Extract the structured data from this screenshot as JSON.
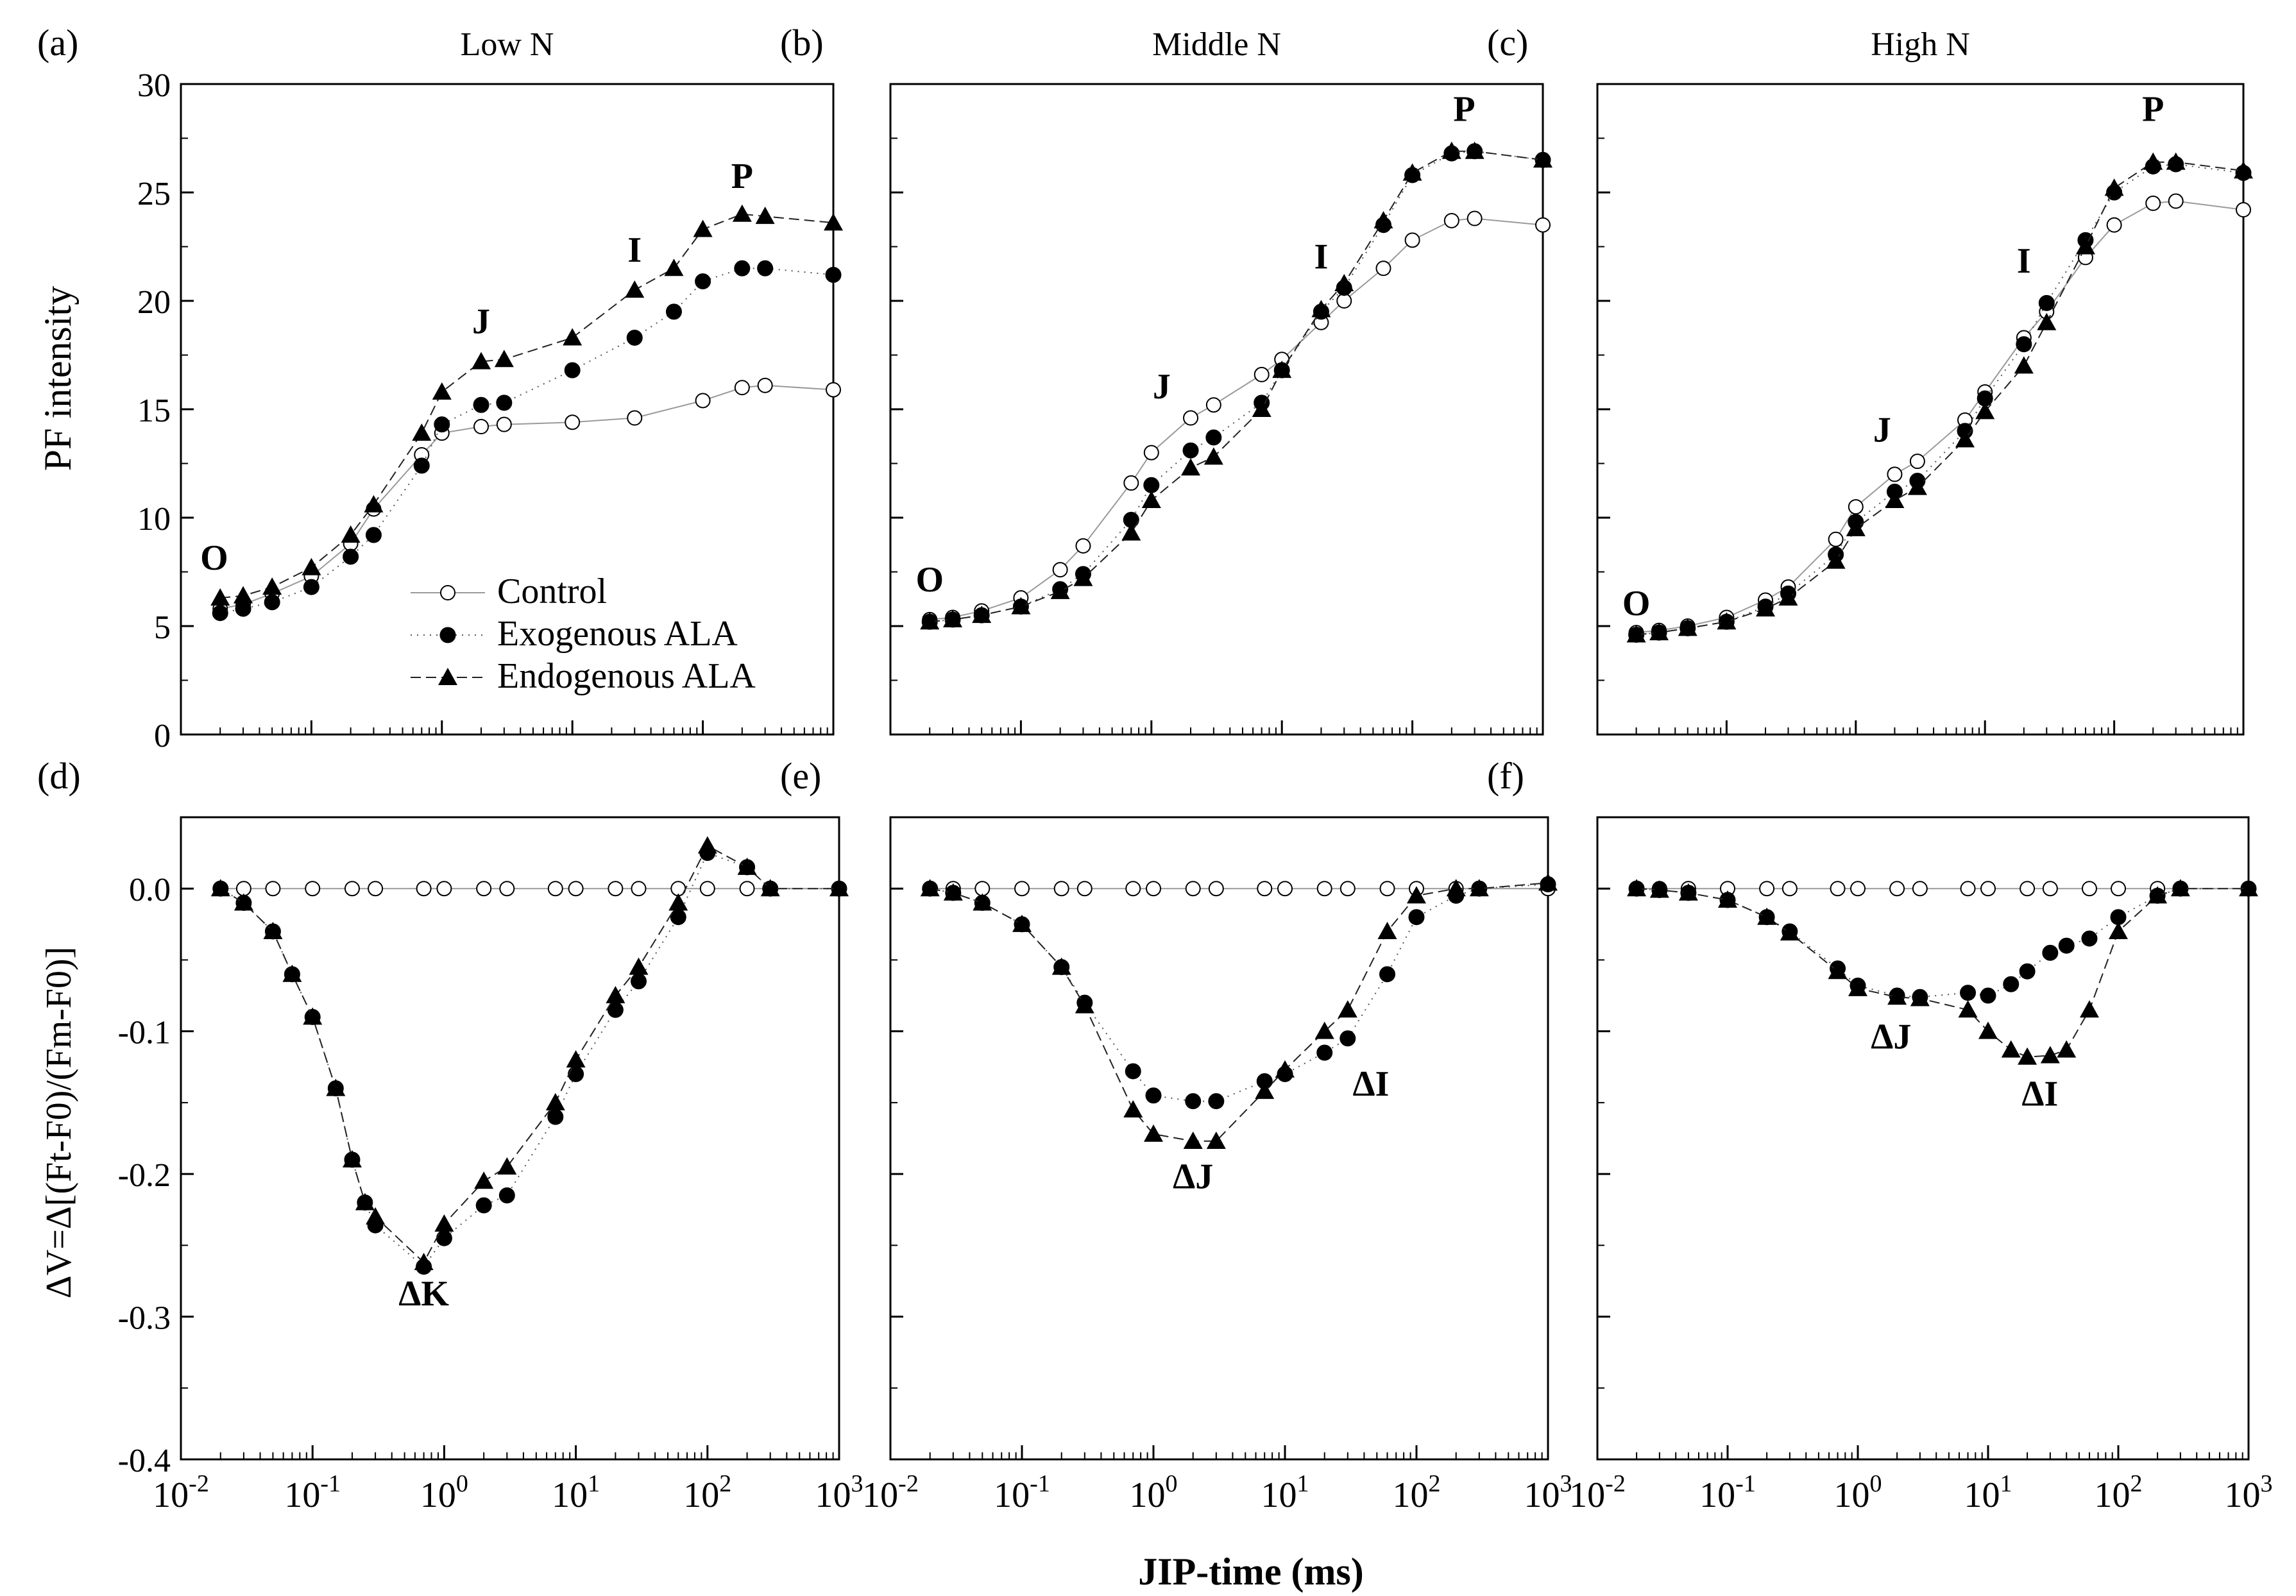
{
  "figure": {
    "xlabel": "JIP-time (ms)",
    "ylabel_top": "PF intensity",
    "ylabel_bottom": "ΔV=Δ[(Ft-F0)/(Fm-F0)]"
  },
  "legend": {
    "entries": [
      {
        "series": "Control",
        "marker": "open-circle"
      },
      {
        "series": "Exogenous ALA",
        "marker": "filled-circle"
      },
      {
        "series": "Endogenous ALA",
        "marker": "filled-triangle"
      }
    ],
    "placement": "panel (a), bottom-center"
  },
  "chart_data": [
    {
      "panel": "(a)",
      "title": "Low N",
      "type": "scatter",
      "xscale": "log",
      "xlim": [
        0.01,
        1000
      ],
      "ylim": [
        0,
        30
      ],
      "yticks": [
        0,
        5,
        10,
        15,
        20,
        25,
        30
      ],
      "xticks": [
        "10-2",
        "10-1",
        "100",
        "101",
        "102",
        "103"
      ],
      "annotations": [
        {
          "text": "O",
          "x": 0.018,
          "y": 7.6
        },
        {
          "text": "J",
          "x": 2.0,
          "y": 18.5
        },
        {
          "text": "I",
          "x": 30,
          "y": 21.8
        },
        {
          "text": "P",
          "x": 200,
          "y": 25.2
        }
      ],
      "series": [
        {
          "name": "Control",
          "x": [
            0.02,
            0.03,
            0.05,
            0.1,
            0.2,
            0.3,
            0.7,
            1,
            2,
            3,
            10,
            30,
            100,
            200,
            300,
            1000
          ],
          "y": [
            5.8,
            6.0,
            6.5,
            7.3,
            8.8,
            10.4,
            12.9,
            13.9,
            14.2,
            14.3,
            14.4,
            14.6,
            15.4,
            16.0,
            16.1,
            15.9
          ]
        },
        {
          "name": "Exogenous ALA",
          "x": [
            0.02,
            0.03,
            0.05,
            0.1,
            0.2,
            0.3,
            0.7,
            1,
            2,
            3,
            10,
            30,
            60,
            100,
            200,
            300,
            1000
          ],
          "y": [
            5.6,
            5.8,
            6.1,
            6.8,
            8.2,
            9.2,
            12.4,
            14.3,
            15.2,
            15.3,
            16.8,
            18.3,
            19.5,
            20.9,
            21.5,
            21.5,
            21.2
          ]
        },
        {
          "name": "Endogenous ALA",
          "x": [
            0.02,
            0.03,
            0.05,
            0.1,
            0.2,
            0.3,
            0.7,
            1,
            2,
            3,
            10,
            30,
            60,
            100,
            200,
            300,
            1000
          ],
          "y": [
            6.3,
            6.4,
            6.8,
            7.7,
            9.2,
            10.6,
            13.9,
            15.8,
            17.2,
            17.3,
            18.3,
            20.5,
            21.5,
            23.3,
            24.0,
            23.9,
            23.6
          ]
        }
      ]
    },
    {
      "panel": "(b)",
      "title": "Middle N",
      "type": "scatter",
      "xscale": "log",
      "xlim": [
        0.01,
        1000
      ],
      "ylim": [
        0,
        30
      ],
      "annotations": [
        {
          "text": "O",
          "x": 0.02,
          "y": 6.6
        },
        {
          "text": "J",
          "x": 1.2,
          "y": 15.5
        },
        {
          "text": "I",
          "x": 20,
          "y": 21.5
        },
        {
          "text": "P",
          "x": 250,
          "y": 28.3
        }
      ],
      "series": [
        {
          "name": "Control",
          "x": [
            0.02,
            0.03,
            0.05,
            0.1,
            0.2,
            0.3,
            0.7,
            1,
            2,
            3,
            7,
            10,
            20,
            30,
            60,
            100,
            200,
            300,
            1000
          ],
          "y": [
            5.3,
            5.4,
            5.7,
            6.3,
            7.6,
            8.7,
            11.6,
            13.0,
            14.6,
            15.2,
            16.6,
            17.3,
            19.0,
            20.0,
            21.5,
            22.8,
            23.7,
            23.8,
            23.5
          ]
        },
        {
          "name": "Exogenous ALA",
          "x": [
            0.02,
            0.03,
            0.05,
            0.1,
            0.2,
            0.3,
            0.7,
            1,
            2,
            3,
            7,
            10,
            20,
            30,
            60,
            100,
            200,
            300,
            1000
          ],
          "y": [
            5.2,
            5.3,
            5.5,
            5.9,
            6.7,
            7.4,
            9.9,
            11.5,
            13.1,
            13.7,
            15.3,
            16.8,
            19.5,
            20.6,
            23.5,
            25.8,
            26.8,
            26.9,
            26.5
          ]
        },
        {
          "name": "Endogenous ALA",
          "x": [
            0.02,
            0.03,
            0.05,
            0.1,
            0.2,
            0.3,
            0.7,
            1,
            2,
            3,
            7,
            10,
            20,
            30,
            60,
            100,
            200,
            300,
            1000
          ],
          "y": [
            5.2,
            5.3,
            5.5,
            5.9,
            6.6,
            7.2,
            9.3,
            10.8,
            12.3,
            12.8,
            15.0,
            16.8,
            19.6,
            20.8,
            23.7,
            25.9,
            26.9,
            26.9,
            26.5
          ]
        }
      ]
    },
    {
      "panel": "(c)",
      "title": "High N",
      "type": "scatter",
      "xscale": "log",
      "xlim": [
        0.01,
        1000
      ],
      "ylim": [
        0,
        30
      ],
      "annotations": [
        {
          "text": "O",
          "x": 0.02,
          "y": 5.5
        },
        {
          "text": "J",
          "x": 1.6,
          "y": 13.5
        },
        {
          "text": "I",
          "x": 20,
          "y": 21.3
        },
        {
          "text": "P",
          "x": 200,
          "y": 28.3
        }
      ],
      "series": [
        {
          "name": "Control",
          "x": [
            0.02,
            0.03,
            0.05,
            0.1,
            0.2,
            0.3,
            0.7,
            1,
            2,
            3,
            7,
            10,
            20,
            30,
            60,
            100,
            200,
            300,
            1000
          ],
          "y": [
            4.7,
            4.8,
            5.0,
            5.4,
            6.2,
            6.8,
            9.0,
            10.5,
            12.0,
            12.6,
            14.5,
            15.8,
            18.3,
            19.5,
            22.0,
            23.5,
            24.5,
            24.6,
            24.2
          ]
        },
        {
          "name": "Exogenous ALA",
          "x": [
            0.02,
            0.03,
            0.05,
            0.1,
            0.2,
            0.3,
            0.7,
            1,
            2,
            3,
            7,
            10,
            20,
            30,
            60,
            100,
            200,
            300,
            1000
          ],
          "y": [
            4.6,
            4.7,
            4.9,
            5.2,
            5.9,
            6.5,
            8.3,
            9.8,
            11.2,
            11.7,
            14.0,
            15.5,
            18.0,
            19.9,
            22.8,
            25.0,
            26.2,
            26.3,
            25.9
          ]
        },
        {
          "name": "Endogenous ALA",
          "x": [
            0.02,
            0.03,
            0.05,
            0.1,
            0.2,
            0.3,
            0.7,
            1,
            2,
            3,
            7,
            10,
            20,
            30,
            60,
            100,
            200,
            300,
            1000
          ],
          "y": [
            4.6,
            4.7,
            4.9,
            5.2,
            5.8,
            6.3,
            8.0,
            9.5,
            10.8,
            11.4,
            13.6,
            14.9,
            17.0,
            19.0,
            22.5,
            25.2,
            26.4,
            26.4,
            26.0
          ]
        }
      ]
    },
    {
      "panel": "(d)",
      "type": "scatter",
      "xscale": "log",
      "xlim": [
        0.01,
        1000
      ],
      "ylim": [
        -0.4,
        0.05
      ],
      "yticks": [
        -0.4,
        -0.3,
        -0.2,
        -0.1,
        0.0
      ],
      "annotations": [
        {
          "text": "ΔK",
          "x": 0.7,
          "y": -0.292
        }
      ],
      "series": [
        {
          "name": "Control",
          "x": [
            0.02,
            0.03,
            0.05,
            0.1,
            0.2,
            0.3,
            0.7,
            1,
            2,
            3,
            7,
            10,
            20,
            30,
            60,
            100,
            200,
            300,
            1000
          ],
          "y": [
            0,
            0,
            0,
            0,
            0,
            0,
            0,
            0,
            0,
            0,
            0,
            0,
            0,
            0,
            0,
            0,
            0,
            0,
            0
          ]
        },
        {
          "name": "Exogenous ALA",
          "x": [
            0.02,
            0.03,
            0.05,
            0.07,
            0.1,
            0.15,
            0.2,
            0.25,
            0.3,
            0.7,
            1,
            2,
            3,
            7,
            10,
            20,
            30,
            60,
            100,
            200,
            300,
            1000
          ],
          "y": [
            0,
            -0.01,
            -0.03,
            -0.06,
            -0.09,
            -0.14,
            -0.19,
            -0.22,
            -0.236,
            -0.265,
            -0.245,
            -0.222,
            -0.215,
            -0.16,
            -0.13,
            -0.085,
            -0.065,
            -0.02,
            0.025,
            0.015,
            0.0,
            0.0
          ]
        },
        {
          "name": "Endogenous ALA",
          "x": [
            0.02,
            0.03,
            0.05,
            0.07,
            0.1,
            0.15,
            0.2,
            0.25,
            0.3,
            0.7,
            1,
            2,
            3,
            7,
            10,
            20,
            30,
            60,
            100,
            200,
            300,
            1000
          ],
          "y": [
            0,
            -0.01,
            -0.03,
            -0.06,
            -0.09,
            -0.14,
            -0.19,
            -0.22,
            -0.23,
            -0.262,
            -0.235,
            -0.205,
            -0.195,
            -0.15,
            -0.12,
            -0.075,
            -0.055,
            -0.01,
            0.03,
            0.015,
            0.0,
            0.0
          ]
        }
      ]
    },
    {
      "panel": "(e)",
      "type": "scatter",
      "xscale": "log",
      "xlim": [
        0.01,
        1000
      ],
      "ylim": [
        -0.4,
        0.05
      ],
      "annotations": [
        {
          "text": "ΔJ",
          "x": 2.0,
          "y": -0.21
        },
        {
          "text": "ΔI",
          "x": 45,
          "y": -0.145
        }
      ],
      "series": [
        {
          "name": "Control",
          "x": [
            0.02,
            0.03,
            0.05,
            0.1,
            0.2,
            0.3,
            0.7,
            1,
            2,
            3,
            7,
            10,
            20,
            30,
            60,
            100,
            200,
            300,
            1000
          ],
          "y": [
            0,
            0,
            0,
            0,
            0,
            0,
            0,
            0,
            0,
            0,
            0,
            0,
            0,
            0,
            0,
            0,
            0,
            0,
            0
          ]
        },
        {
          "name": "Exogenous ALA",
          "x": [
            0.02,
            0.03,
            0.05,
            0.1,
            0.2,
            0.3,
            0.7,
            1,
            2,
            3,
            7,
            10,
            20,
            30,
            60,
            100,
            200,
            300,
            1000
          ],
          "y": [
            0,
            -0.003,
            -0.01,
            -0.025,
            -0.055,
            -0.08,
            -0.128,
            -0.145,
            -0.149,
            -0.149,
            -0.135,
            -0.13,
            -0.115,
            -0.105,
            -0.06,
            -0.02,
            -0.005,
            0.0,
            0.003
          ]
        },
        {
          "name": "Endogenous ALA",
          "x": [
            0.02,
            0.03,
            0.05,
            0.1,
            0.2,
            0.3,
            0.7,
            1,
            2,
            3,
            7,
            10,
            20,
            30,
            60,
            100,
            200,
            300,
            1000
          ],
          "y": [
            0,
            -0.003,
            -0.01,
            -0.025,
            -0.055,
            -0.082,
            -0.155,
            -0.172,
            -0.177,
            -0.177,
            -0.142,
            -0.127,
            -0.1,
            -0.085,
            -0.03,
            -0.005,
            0.0,
            0.0,
            0.004
          ]
        }
      ]
    },
    {
      "panel": "(f)",
      "type": "scatter",
      "xscale": "log",
      "xlim": [
        0.01,
        1000
      ],
      "ylim": [
        -0.4,
        0.05
      ],
      "annotations": [
        {
          "text": "ΔJ",
          "x": 1.8,
          "y": -0.112
        },
        {
          "text": "ΔI",
          "x": 25,
          "y": -0.152
        }
      ],
      "series": [
        {
          "name": "Control",
          "x": [
            0.02,
            0.03,
            0.05,
            0.1,
            0.2,
            0.3,
            0.7,
            1,
            2,
            3,
            7,
            10,
            20,
            30,
            60,
            100,
            200,
            300,
            1000
          ],
          "y": [
            0,
            0,
            0,
            0,
            0,
            0,
            0,
            0,
            0,
            0,
            0,
            0,
            0,
            0,
            0,
            0,
            0,
            0,
            0
          ]
        },
        {
          "name": "Exogenous ALA",
          "x": [
            0.02,
            0.03,
            0.05,
            0.1,
            0.2,
            0.3,
            0.7,
            1,
            2,
            3,
            7,
            10,
            15,
            20,
            30,
            40,
            60,
            100,
            200,
            300,
            1000
          ],
          "y": [
            0,
            -0.001,
            -0.003,
            -0.008,
            -0.02,
            -0.03,
            -0.056,
            -0.068,
            -0.075,
            -0.076,
            -0.073,
            -0.075,
            -0.067,
            -0.058,
            -0.045,
            -0.04,
            -0.035,
            -0.02,
            -0.005,
            0.0,
            0.0
          ]
        },
        {
          "name": "Endogenous ALA",
          "x": [
            0.02,
            0.03,
            0.05,
            0.1,
            0.2,
            0.3,
            0.7,
            1,
            2,
            3,
            7,
            10,
            15,
            20,
            30,
            40,
            60,
            100,
            200,
            300,
            1000
          ],
          "y": [
            0,
            -0.001,
            -0.003,
            -0.008,
            -0.02,
            -0.031,
            -0.058,
            -0.07,
            -0.076,
            -0.077,
            -0.085,
            -0.1,
            -0.113,
            -0.118,
            -0.117,
            -0.113,
            -0.085,
            -0.03,
            -0.005,
            0.0,
            0.0
          ]
        }
      ]
    }
  ]
}
